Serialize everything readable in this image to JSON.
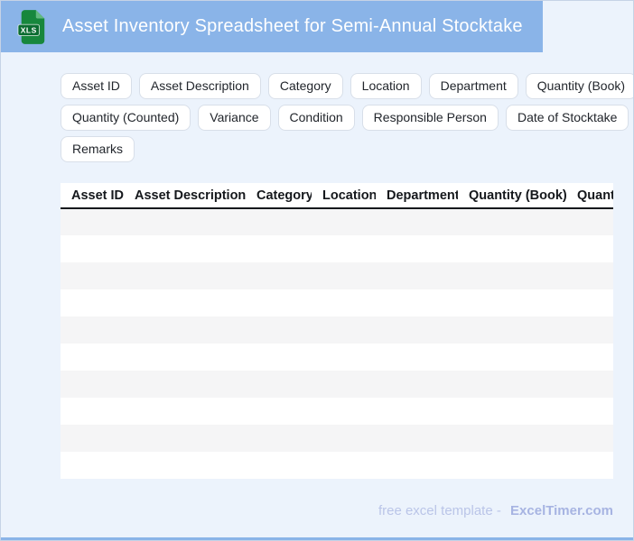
{
  "header": {
    "title": "Asset Inventory Spreadsheet for Semi-Annual Stocktake",
    "icon_label": "XLS",
    "background_color": "#8ab4e8",
    "icon_color": "#17873d"
  },
  "chips": {
    "rows": [
      [
        "Asset ID",
        "Asset Description",
        "Category",
        "Location",
        "Department",
        "Quantity (Book)"
      ],
      [
        "Quantity (Counted)",
        "Variance",
        "Condition",
        "Responsible Person",
        "Date of Stocktake"
      ],
      [
        "Remarks"
      ]
    ]
  },
  "table": {
    "columns": [
      "Asset ID",
      "Asset Description",
      "Category",
      "Location",
      "Department",
      "Quantity (Book)",
      "Quantity (Counted)"
    ],
    "empty_row_count": 10,
    "alt_row_color": "#f5f5f6"
  },
  "footer": {
    "text": "free excel template -",
    "brand": "ExcelTimer.com"
  },
  "colors": {
    "page_background": "#ecf3fc",
    "accent_blue": "#8ab4e8"
  }
}
